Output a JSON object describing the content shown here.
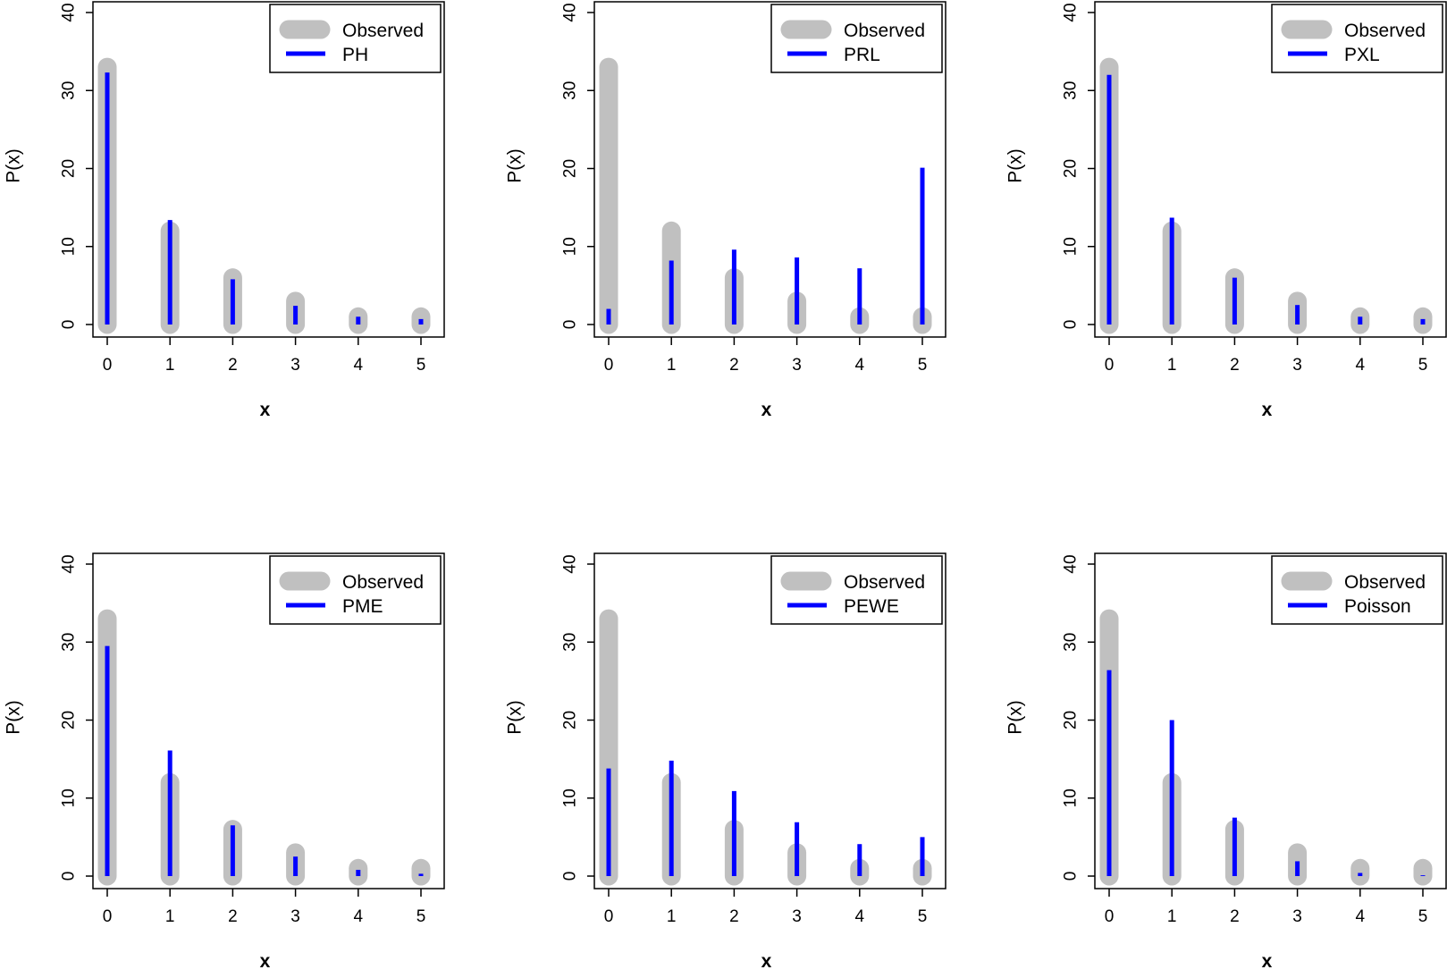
{
  "colors": {
    "observed": "#c0c0c0",
    "fitted": "#0000ff",
    "frame": "#000000"
  },
  "chart_data": [
    {
      "type": "bar",
      "xlabel": "x",
      "ylabel": "P(x)",
      "categories": [
        "0",
        "1",
        "2",
        "3",
        "4",
        "5"
      ],
      "ylim": [
        0,
        40
      ],
      "yticks": [
        "0",
        "10",
        "20",
        "30",
        "40"
      ],
      "legend": {
        "position": "top-right",
        "entries": [
          "Observed",
          "PH"
        ]
      },
      "series": [
        {
          "name": "Observed",
          "values": [
            33,
            12,
            6,
            3,
            1,
            1
          ]
        },
        {
          "name": "PH",
          "values": [
            32.3,
            13.4,
            5.8,
            2.4,
            1.0,
            0.7
          ]
        }
      ]
    },
    {
      "type": "bar",
      "xlabel": "x",
      "ylabel": "P(x)",
      "categories": [
        "0",
        "1",
        "2",
        "3",
        "4",
        "5"
      ],
      "ylim": [
        0,
        40
      ],
      "yticks": [
        "0",
        "10",
        "20",
        "30",
        "40"
      ],
      "legend": {
        "position": "top-right",
        "entries": [
          "Observed",
          "PRL"
        ]
      },
      "series": [
        {
          "name": "Observed",
          "values": [
            33,
            12,
            6,
            3,
            1,
            1
          ]
        },
        {
          "name": "PRL",
          "values": [
            2.0,
            8.2,
            9.6,
            8.6,
            7.2,
            20.1
          ]
        }
      ]
    },
    {
      "type": "bar",
      "xlabel": "x",
      "ylabel": "P(x)",
      "categories": [
        "0",
        "1",
        "2",
        "3",
        "4",
        "5"
      ],
      "ylim": [
        0,
        40
      ],
      "yticks": [
        "0",
        "10",
        "20",
        "30",
        "40"
      ],
      "legend": {
        "position": "top-right",
        "entries": [
          "Observed",
          "PXL"
        ]
      },
      "series": [
        {
          "name": "Observed",
          "values": [
            33,
            12,
            6,
            3,
            1,
            1
          ]
        },
        {
          "name": "PXL",
          "values": [
            32.0,
            13.7,
            6.0,
            2.5,
            1.0,
            0.7
          ]
        }
      ]
    },
    {
      "type": "bar",
      "xlabel": "x",
      "ylabel": "P(x)",
      "categories": [
        "0",
        "1",
        "2",
        "3",
        "4",
        "5"
      ],
      "ylim": [
        0,
        40
      ],
      "yticks": [
        "0",
        "10",
        "20",
        "30",
        "40"
      ],
      "legend": {
        "position": "top-right",
        "entries": [
          "Observed",
          "PME"
        ]
      },
      "series": [
        {
          "name": "Observed",
          "values": [
            33,
            12,
            6,
            3,
            1,
            1
          ]
        },
        {
          "name": "PME",
          "values": [
            29.5,
            16.1,
            6.5,
            2.5,
            0.8,
            0.3
          ]
        }
      ]
    },
    {
      "type": "bar",
      "xlabel": "x",
      "ylabel": "P(x)",
      "categories": [
        "0",
        "1",
        "2",
        "3",
        "4",
        "5"
      ],
      "ylim": [
        0,
        40
      ],
      "yticks": [
        "0",
        "10",
        "20",
        "30",
        "40"
      ],
      "legend": {
        "position": "top-right",
        "entries": [
          "Observed",
          "PEWE"
        ]
      },
      "series": [
        {
          "name": "Observed",
          "values": [
            33,
            12,
            6,
            3,
            1,
            1
          ]
        },
        {
          "name": "PEWE",
          "values": [
            13.8,
            14.8,
            10.9,
            6.9,
            4.1,
            5.0
          ]
        }
      ]
    },
    {
      "type": "bar",
      "xlabel": "x",
      "ylabel": "P(x)",
      "categories": [
        "0",
        "1",
        "2",
        "3",
        "4",
        "5"
      ],
      "ylim": [
        0,
        40
      ],
      "yticks": [
        "0",
        "10",
        "20",
        "30",
        "40"
      ],
      "legend": {
        "position": "top-right",
        "entries": [
          "Observed",
          "Poisson"
        ]
      },
      "series": [
        {
          "name": "Observed",
          "values": [
            33,
            12,
            6,
            3,
            1,
            1
          ]
        },
        {
          "name": "Poisson",
          "values": [
            26.4,
            20.0,
            7.5,
            1.9,
            0.4,
            0.1
          ]
        }
      ]
    }
  ]
}
